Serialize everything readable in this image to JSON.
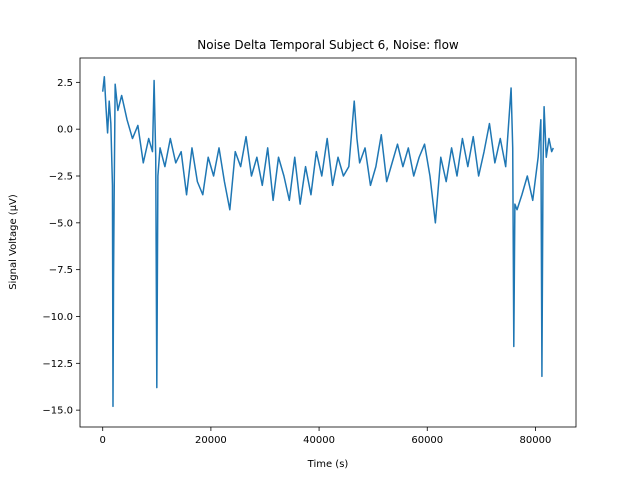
{
  "chart_data": {
    "type": "line",
    "title": "Noise Delta Temporal Subject 6, Noise: flow",
    "xlabel": "Time (s)",
    "ylabel": "Signal Voltage (μV)",
    "xlim": [
      -4200,
      87500
    ],
    "ylim": [
      -15.9,
      3.8
    ],
    "xticks": [
      0,
      20000,
      40000,
      60000,
      80000
    ],
    "xtick_labels": [
      "0",
      "20000",
      "40000",
      "60000",
      "80000"
    ],
    "yticks": [
      2.5,
      0.0,
      -2.5,
      -5.0,
      -7.5,
      -10.0,
      -12.5,
      -15.0
    ],
    "ytick_labels": [
      "2.5",
      "0.0",
      "−2.5",
      "−5.0",
      "−7.5",
      "−10.0",
      "−12.5",
      "−15.0"
    ],
    "grid": false,
    "color": "#1f77b4",
    "series": [
      {
        "x": [
          0,
          300,
          600,
          900,
          1200,
          1500,
          1800,
          1900,
          2000,
          2100,
          2300,
          2800,
          3500,
          4500,
          5500,
          6500,
          7500,
          8500,
          9200,
          9500,
          9800,
          10000,
          10200,
          10600,
          11500,
          12500,
          13500,
          14500,
          15500,
          16500,
          17500,
          18500,
          19500,
          20500,
          21500,
          22500,
          23500,
          24500,
          25500,
          26500,
          27500,
          28500,
          29500,
          30500,
          31500,
          32500,
          33500,
          34500,
          35500,
          36500,
          37500,
          38500,
          39500,
          40500,
          41500,
          42500,
          43500,
          44500,
          45500,
          46500,
          47000,
          47500,
          48500,
          49500,
          50500,
          51500,
          52500,
          53500,
          54500,
          55500,
          56500,
          57500,
          58500,
          59500,
          60500,
          61500,
          62500,
          63500,
          64500,
          65500,
          66500,
          67500,
          68500,
          69500,
          70500,
          71500,
          72500,
          73500,
          74500,
          75500,
          75800,
          76000,
          76200,
          76600,
          77500,
          78500,
          79500,
          80500,
          81000,
          81200,
          81400,
          81600,
          82000,
          82500,
          83000,
          83300
        ],
        "y": [
          2.0,
          2.8,
          1.2,
          -0.2,
          1.5,
          0.3,
          -3.0,
          -14.8,
          -8.0,
          -4.0,
          2.4,
          1.0,
          1.8,
          0.5,
          -0.5,
          0.2,
          -1.8,
          -0.5,
          -1.2,
          2.6,
          -1.5,
          -13.8,
          -2.5,
          -1.0,
          -2.0,
          -0.5,
          -1.8,
          -1.2,
          -3.5,
          -1.0,
          -2.8,
          -3.5,
          -1.5,
          -2.5,
          -1.0,
          -2.8,
          -4.3,
          -1.2,
          -2.0,
          -0.4,
          -2.5,
          -1.5,
          -3.0,
          -1.0,
          -3.8,
          -1.5,
          -2.5,
          -3.8,
          -1.5,
          -4.0,
          -2.0,
          -3.5,
          -1.2,
          -2.5,
          -0.5,
          -3.0,
          -1.5,
          -2.5,
          -2.0,
          1.5,
          -0.5,
          -1.8,
          -1.0,
          -3.0,
          -2.0,
          -0.3,
          -2.8,
          -1.8,
          -0.8,
          -2.0,
          -1.0,
          -2.5,
          -1.5,
          -0.8,
          -2.5,
          -5.0,
          -1.5,
          -2.8,
          -1.0,
          -2.5,
          -0.5,
          -2.0,
          -0.4,
          -2.5,
          -1.2,
          0.3,
          -1.8,
          -0.5,
          -2.0,
          2.2,
          -1.0,
          -11.6,
          -4.0,
          -4.3,
          -3.5,
          -2.5,
          -3.8,
          -1.5,
          0.5,
          -13.2,
          -2.0,
          1.2,
          -1.5,
          -0.5,
          -1.2,
          -1.0
        ]
      }
    ]
  }
}
